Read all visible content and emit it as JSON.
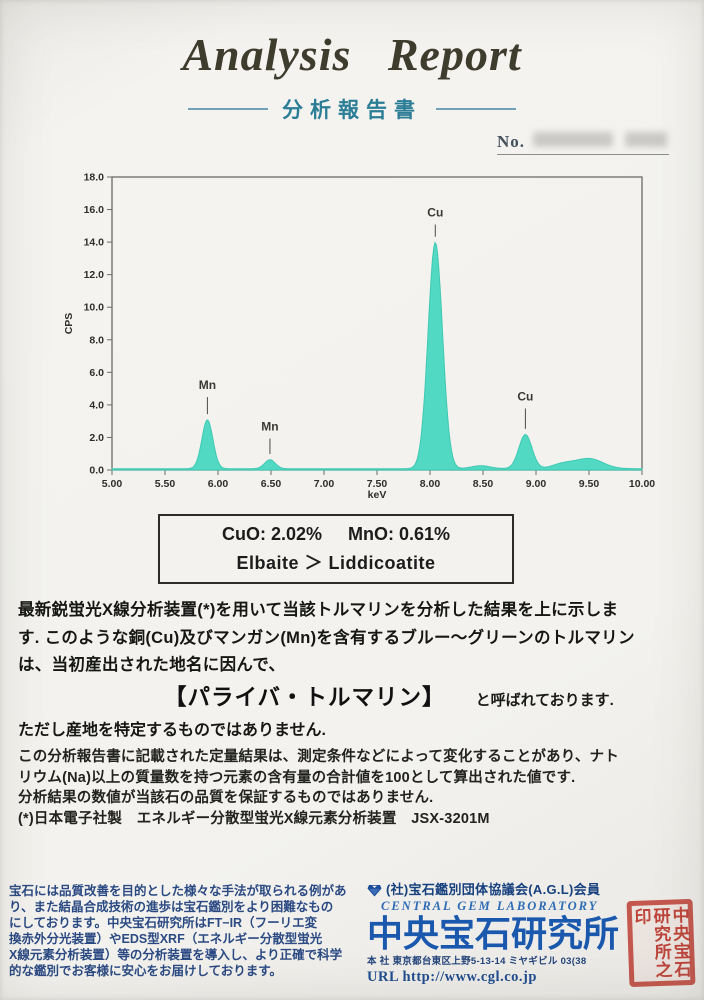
{
  "header": {
    "title": "Analysis Report",
    "subtitle": "分析報告書",
    "no_label": "No."
  },
  "chart_data": {
    "type": "area",
    "title": "",
    "xlabel": "keV",
    "ylabel": "CPS",
    "x_range": [
      5.0,
      10.0
    ],
    "y_range": [
      0.0,
      18.0
    ],
    "x_ticks": [
      "5.00",
      "5.50",
      "6.00",
      "6.50",
      "7.00",
      "7.50",
      "8.00",
      "8.50",
      "9.00",
      "9.50",
      "10.00"
    ],
    "y_ticks": [
      "0.0",
      "2.0",
      "4.0",
      "6.0",
      "8.0",
      "10.0",
      "12.0",
      "14.0",
      "16.0",
      "18.0"
    ],
    "grid": "off",
    "baseline": 0.08,
    "fill_color": "#52d9c3",
    "stroke_color": "#3fc9b2",
    "peaks": [
      {
        "c": 5.9,
        "h": 3.0,
        "w": 0.052,
        "label": "Mn",
        "label_offset": 1.9
      },
      {
        "c": 6.49,
        "h": 0.55,
        "w": 0.05,
        "label": "Mn",
        "label_offset": 1.8
      },
      {
        "c": 8.05,
        "h": 13.9,
        "w": 0.068,
        "label": "Cu",
        "label_offset": 1.6
      },
      {
        "c": 8.48,
        "h": 0.18,
        "w": 0.09,
        "label": "",
        "label_offset": 0
      },
      {
        "c": 8.9,
        "h": 2.1,
        "w": 0.062,
        "label": "Cu",
        "label_offset": 2.1
      },
      {
        "c": 9.25,
        "h": 0.28,
        "w": 0.1,
        "label": "",
        "label_offset": 0
      },
      {
        "c": 9.5,
        "h": 0.62,
        "w": 0.13,
        "label": "",
        "label_offset": 0
      }
    ]
  },
  "result_box": {
    "cuo": "CuO: 2.02%",
    "mno": "MnO: 0.61%",
    "species": "Elbaite ＞ Liddicoatite"
  },
  "body": {
    "p1_lines": [
      "最新鋭蛍光X線分析装置(*)を用いて当該トルマリンを分析した結果を上に示しま",
      "す. このような銅(Cu)及びマンガン(Mn)を含有するブルー〜グリーンのトルマリン",
      "は、当初産出された地名に因んで、"
    ],
    "paraiba_name": "【パライバ・トルマリン】",
    "paraiba_suffix": "と呼ばれております.",
    "note_line": "ただし産地を特定するものではありません.",
    "p2_lines": [
      "この分析報告書に記載された定量結果は、測定条件などによって変化することがあり、ナト",
      "リウム(Na)以上の質量数を持つ元素の含有量の合計値を100として算出された値です.",
      "分析結果の数値が当該石の品質を保証するものではありません.",
      "(*)日本電子社製　エネルギー分散型蛍光X線元素分析装置　JSX-3201M"
    ]
  },
  "footer": {
    "left_lines": [
      "宝石には品質改善を目的とした様々な手法が取られる例があ",
      "り、また結晶合成技術の進歩は宝石鑑別をより困難なもの",
      "にしております。中央宝石研究所はFT−IR（フーリエ変",
      "換赤外分光装置）やEDS型XRF（エネルギー分散型蛍光",
      "X線元素分析装置）等の分析装置を導入し、より正確で科学",
      "的な鑑別でお客様に安心をお届けしております。"
    ],
    "membership": "(社)宝石鑑別団体協議会(A.G.L)会員",
    "english_name": "CENTRAL GEM LABORATORY",
    "company_name": "中央宝石研究所",
    "address": "本 社 東京都台東区上野5-13-14 ミヤギビル 03(38",
    "url": "URL  http://www.cgl.co.jp",
    "seal_text": "中央宝石研究所之印"
  },
  "colors": {
    "spectrum_fill": "#52d9c3",
    "accent_teal": "#2c7d96",
    "logo_blue": "#1a58ae",
    "seal_red": "#c5271b"
  }
}
